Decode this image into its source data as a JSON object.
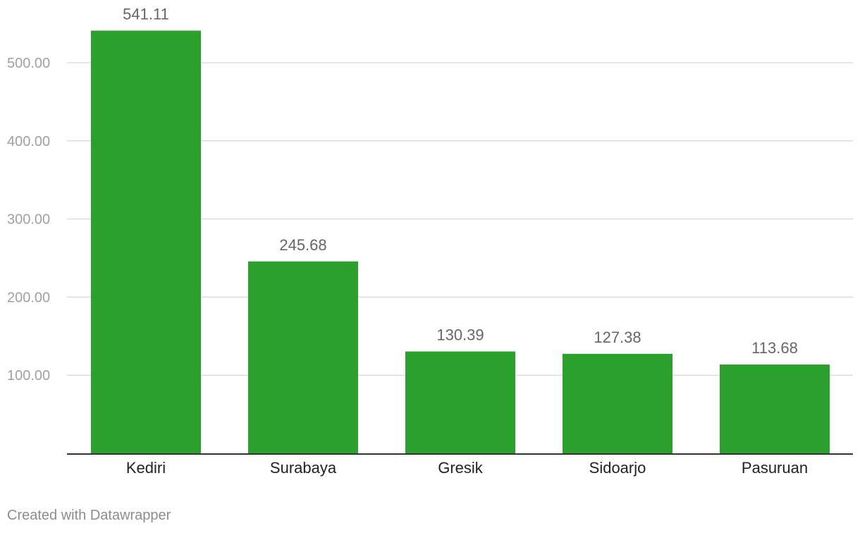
{
  "chart_data": {
    "type": "bar",
    "categories": [
      "Kediri",
      "Surabaya",
      "Gresik",
      "Sidoarjo",
      "Pasuruan"
    ],
    "values": [
      541.11,
      245.68,
      130.39,
      127.38,
      113.68
    ],
    "value_labels": [
      "541.11",
      "245.68",
      "130.39",
      "127.38",
      "113.68"
    ],
    "y_ticks": [
      100,
      200,
      300,
      400,
      500
    ],
    "y_tick_labels": [
      "100.00",
      "200.00",
      "300.00",
      "400.00",
      "500.00"
    ],
    "ylim": [
      0,
      541.11
    ],
    "grid": true,
    "legend": "none",
    "title": "",
    "xlabel": "",
    "ylabel": ""
  },
  "colors": {
    "bar": "#2ca02c",
    "grid": "#dddddd",
    "axis": "#333333",
    "tick_label": "#a0a0a0",
    "value_label": "#666666",
    "category_label": "#222222"
  },
  "footer": {
    "credit": "Created with Datawrapper"
  }
}
